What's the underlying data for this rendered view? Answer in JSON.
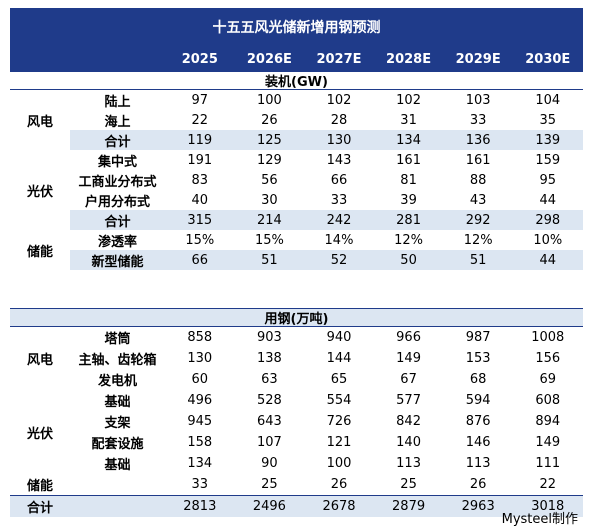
{
  "title": "十五五风光储新增用钢预测",
  "years": [
    "2025",
    "2026E",
    "2027E",
    "2028E",
    "2029E",
    "2030E"
  ],
  "install": {
    "header": "装机(GW)",
    "groups": {
      "wind": "风电",
      "solar": "光伏",
      "storage": "储能"
    },
    "rows": [
      {
        "label": "陆上",
        "values": [
          "97",
          "100",
          "102",
          "102",
          "103",
          "104"
        ]
      },
      {
        "label": "海上",
        "values": [
          "22",
          "26",
          "28",
          "31",
          "33",
          "35"
        ]
      },
      {
        "label": "合计",
        "values": [
          "119",
          "125",
          "130",
          "134",
          "136",
          "139"
        ]
      },
      {
        "label": "集中式",
        "values": [
          "191",
          "129",
          "143",
          "161",
          "161",
          "159"
        ]
      },
      {
        "label": "工商业分布式",
        "values": [
          "83",
          "56",
          "66",
          "81",
          "88",
          "95"
        ]
      },
      {
        "label": "户用分布式",
        "values": [
          "40",
          "30",
          "33",
          "39",
          "43",
          "44"
        ]
      },
      {
        "label": "合计",
        "values": [
          "315",
          "214",
          "242",
          "281",
          "292",
          "298"
        ]
      },
      {
        "label": "渗透率",
        "values": [
          "15%",
          "15%",
          "14%",
          "12%",
          "12%",
          "10%"
        ]
      },
      {
        "label": "新型储能",
        "values": [
          "66",
          "51",
          "52",
          "50",
          "51",
          "44"
        ]
      }
    ]
  },
  "steel": {
    "header": "用钢(万吨)",
    "groups": {
      "wind": "风电",
      "solar": "光伏"
    },
    "rows": [
      {
        "label": "塔筒",
        "values": [
          "858",
          "903",
          "940",
          "966",
          "987",
          "1008"
        ]
      },
      {
        "label": "主轴、齿轮箱",
        "values": [
          "130",
          "138",
          "144",
          "149",
          "153",
          "156"
        ]
      },
      {
        "label": "发电机",
        "values": [
          "60",
          "63",
          "65",
          "67",
          "68",
          "69"
        ]
      },
      {
        "label": "基础",
        "values": [
          "496",
          "528",
          "554",
          "577",
          "594",
          "608"
        ]
      },
      {
        "label": "支架",
        "values": [
          "945",
          "643",
          "726",
          "842",
          "876",
          "894"
        ]
      },
      {
        "label": "配套设施",
        "values": [
          "158",
          "107",
          "121",
          "140",
          "146",
          "149"
        ]
      },
      {
        "label": "基础",
        "values": [
          "134",
          "90",
          "100",
          "113",
          "113",
          "111"
        ]
      },
      {
        "cat": "储能",
        "values": [
          "33",
          "25",
          "26",
          "25",
          "26",
          "22"
        ]
      }
    ],
    "total": {
      "label": "合计",
      "values": [
        "2813",
        "2496",
        "2678",
        "2879",
        "2963",
        "3018"
      ]
    }
  },
  "footer": "Mysteel制作"
}
